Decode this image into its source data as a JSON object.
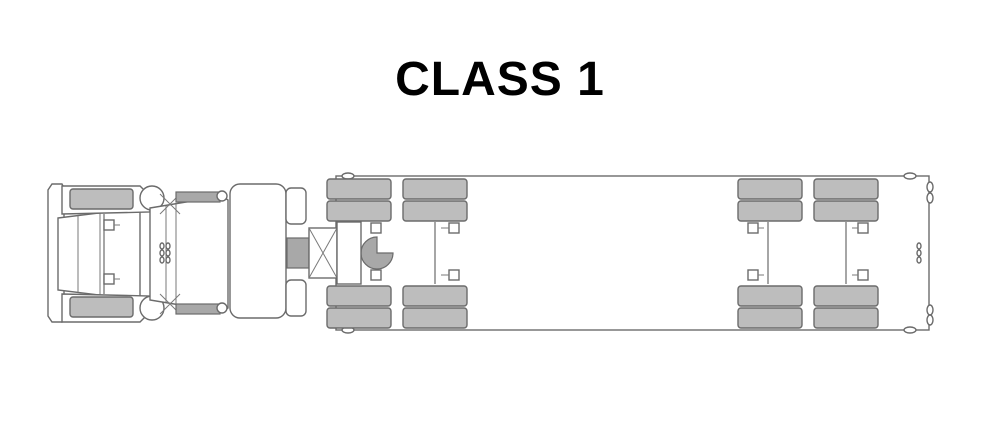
{
  "title": "CLASS 1",
  "colors": {
    "outline": "#6b6b6b",
    "tire_fill": "#bdbdbd",
    "body_fill": "#ffffff",
    "title_text": "#000000"
  },
  "vehicle": {
    "tractor_axles": 2,
    "trailer_axles": 4
  }
}
